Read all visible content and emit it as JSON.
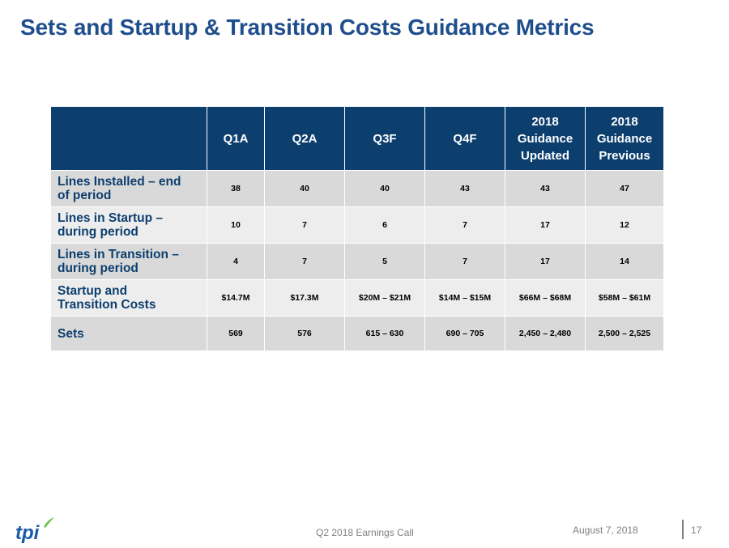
{
  "title": "Sets and Startup & Transition Costs Guidance Metrics",
  "table": {
    "columns": [
      {
        "lines": [
          "Q1A"
        ]
      },
      {
        "lines": [
          "Q2A"
        ]
      },
      {
        "lines": [
          "Q3F"
        ]
      },
      {
        "lines": [
          "Q4F"
        ]
      },
      {
        "lines": [
          "2018",
          "Guidance",
          "Updated"
        ]
      },
      {
        "lines": [
          "2018",
          "Guidance",
          "Previous"
        ]
      }
    ],
    "rows": [
      {
        "label_lines": [
          "Lines Installed – end",
          "of period"
        ],
        "values": [
          "38",
          "40",
          "40",
          "43",
          "43",
          "47"
        ]
      },
      {
        "label_lines": [
          "Lines in Startup –",
          "during period"
        ],
        "values": [
          "10",
          "7",
          "6",
          "7",
          "17",
          "12"
        ]
      },
      {
        "label_lines": [
          "Lines in Transition –",
          "during period"
        ],
        "values": [
          "4",
          "7",
          "5",
          "7",
          "17",
          "14"
        ]
      },
      {
        "label_lines": [
          "Startup and",
          "Transition Costs"
        ],
        "values": [
          "$14.7M",
          "$17.3M",
          "$20M – $21M",
          "$14M – $15M",
          "$66M – $68M",
          "$58M – $61M"
        ]
      },
      {
        "label_lines": [
          "Sets"
        ],
        "values": [
          "569",
          "576",
          "615 – 630",
          "690 – 705",
          "2,450 – 2,480",
          "2,500 – 2,525"
        ]
      }
    ]
  },
  "footer": {
    "event": "Q2 2018 Earnings Call",
    "date": "August 7, 2018",
    "page_number": "17"
  },
  "logo": {
    "text": "tpi",
    "colors": {
      "text": "#1a5aa6",
      "leaf": "#6cc04a"
    }
  },
  "colors": {
    "title": "#1f4e8c",
    "header_bg": "#0c3f6e",
    "row_dark": "#d9d9d9",
    "row_light": "#ededed",
    "label_text": "#0c3f6e"
  }
}
